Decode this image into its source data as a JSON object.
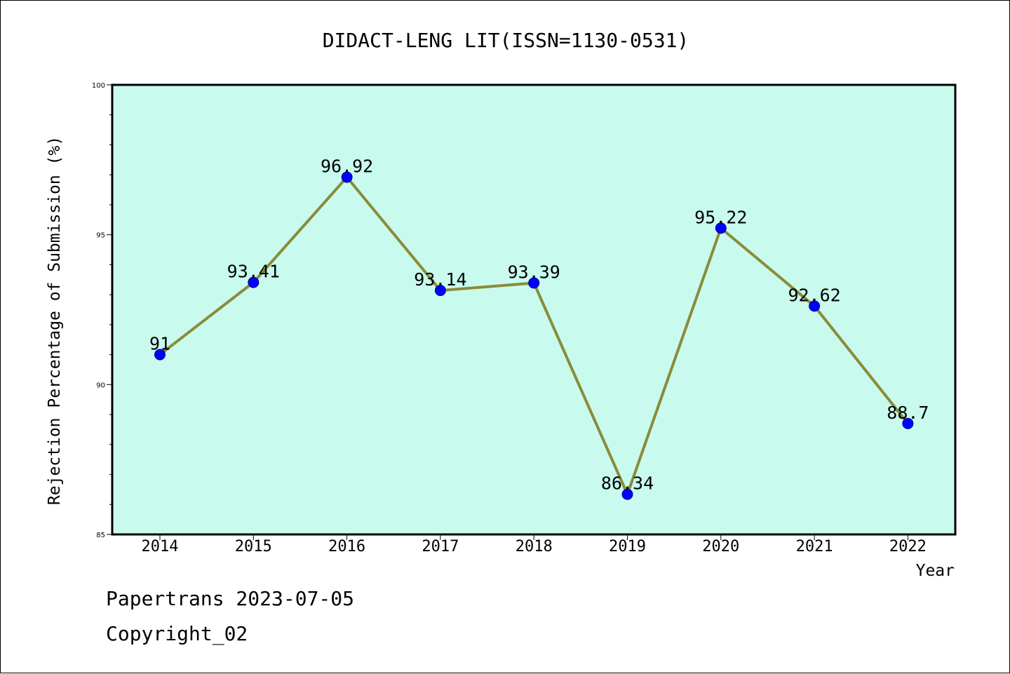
{
  "chart_data": {
    "type": "line",
    "title": "DIDACT-LENG LIT(ISSN=1130-0531)",
    "xlabel": "Year",
    "ylabel": "Rejection Percentage of Submission (%)",
    "categories": [
      "2014",
      "2015",
      "2016",
      "2017",
      "2018",
      "2019",
      "2020",
      "2021",
      "2022"
    ],
    "values": [
      91,
      93.41,
      96.92,
      93.14,
      93.39,
      86.34,
      95.22,
      92.62,
      88.7
    ],
    "data_labels": [
      "91",
      "93.41",
      "96.92",
      "93.14",
      "93.39",
      "86.34",
      "95.22",
      "92.62",
      "88.7"
    ],
    "ylim": [
      85,
      100
    ],
    "yticks": [
      "85",
      "90",
      "95",
      "100"
    ],
    "grid": false,
    "legend": "none",
    "colors": {
      "plot_background": "#c8fbee",
      "line": "#8b8b3a",
      "marker": "#0000ff",
      "marker_edge": "#00008b"
    }
  },
  "footer": {
    "line1": "Papertrans 2023-07-05",
    "line2": "Copyright_02"
  }
}
